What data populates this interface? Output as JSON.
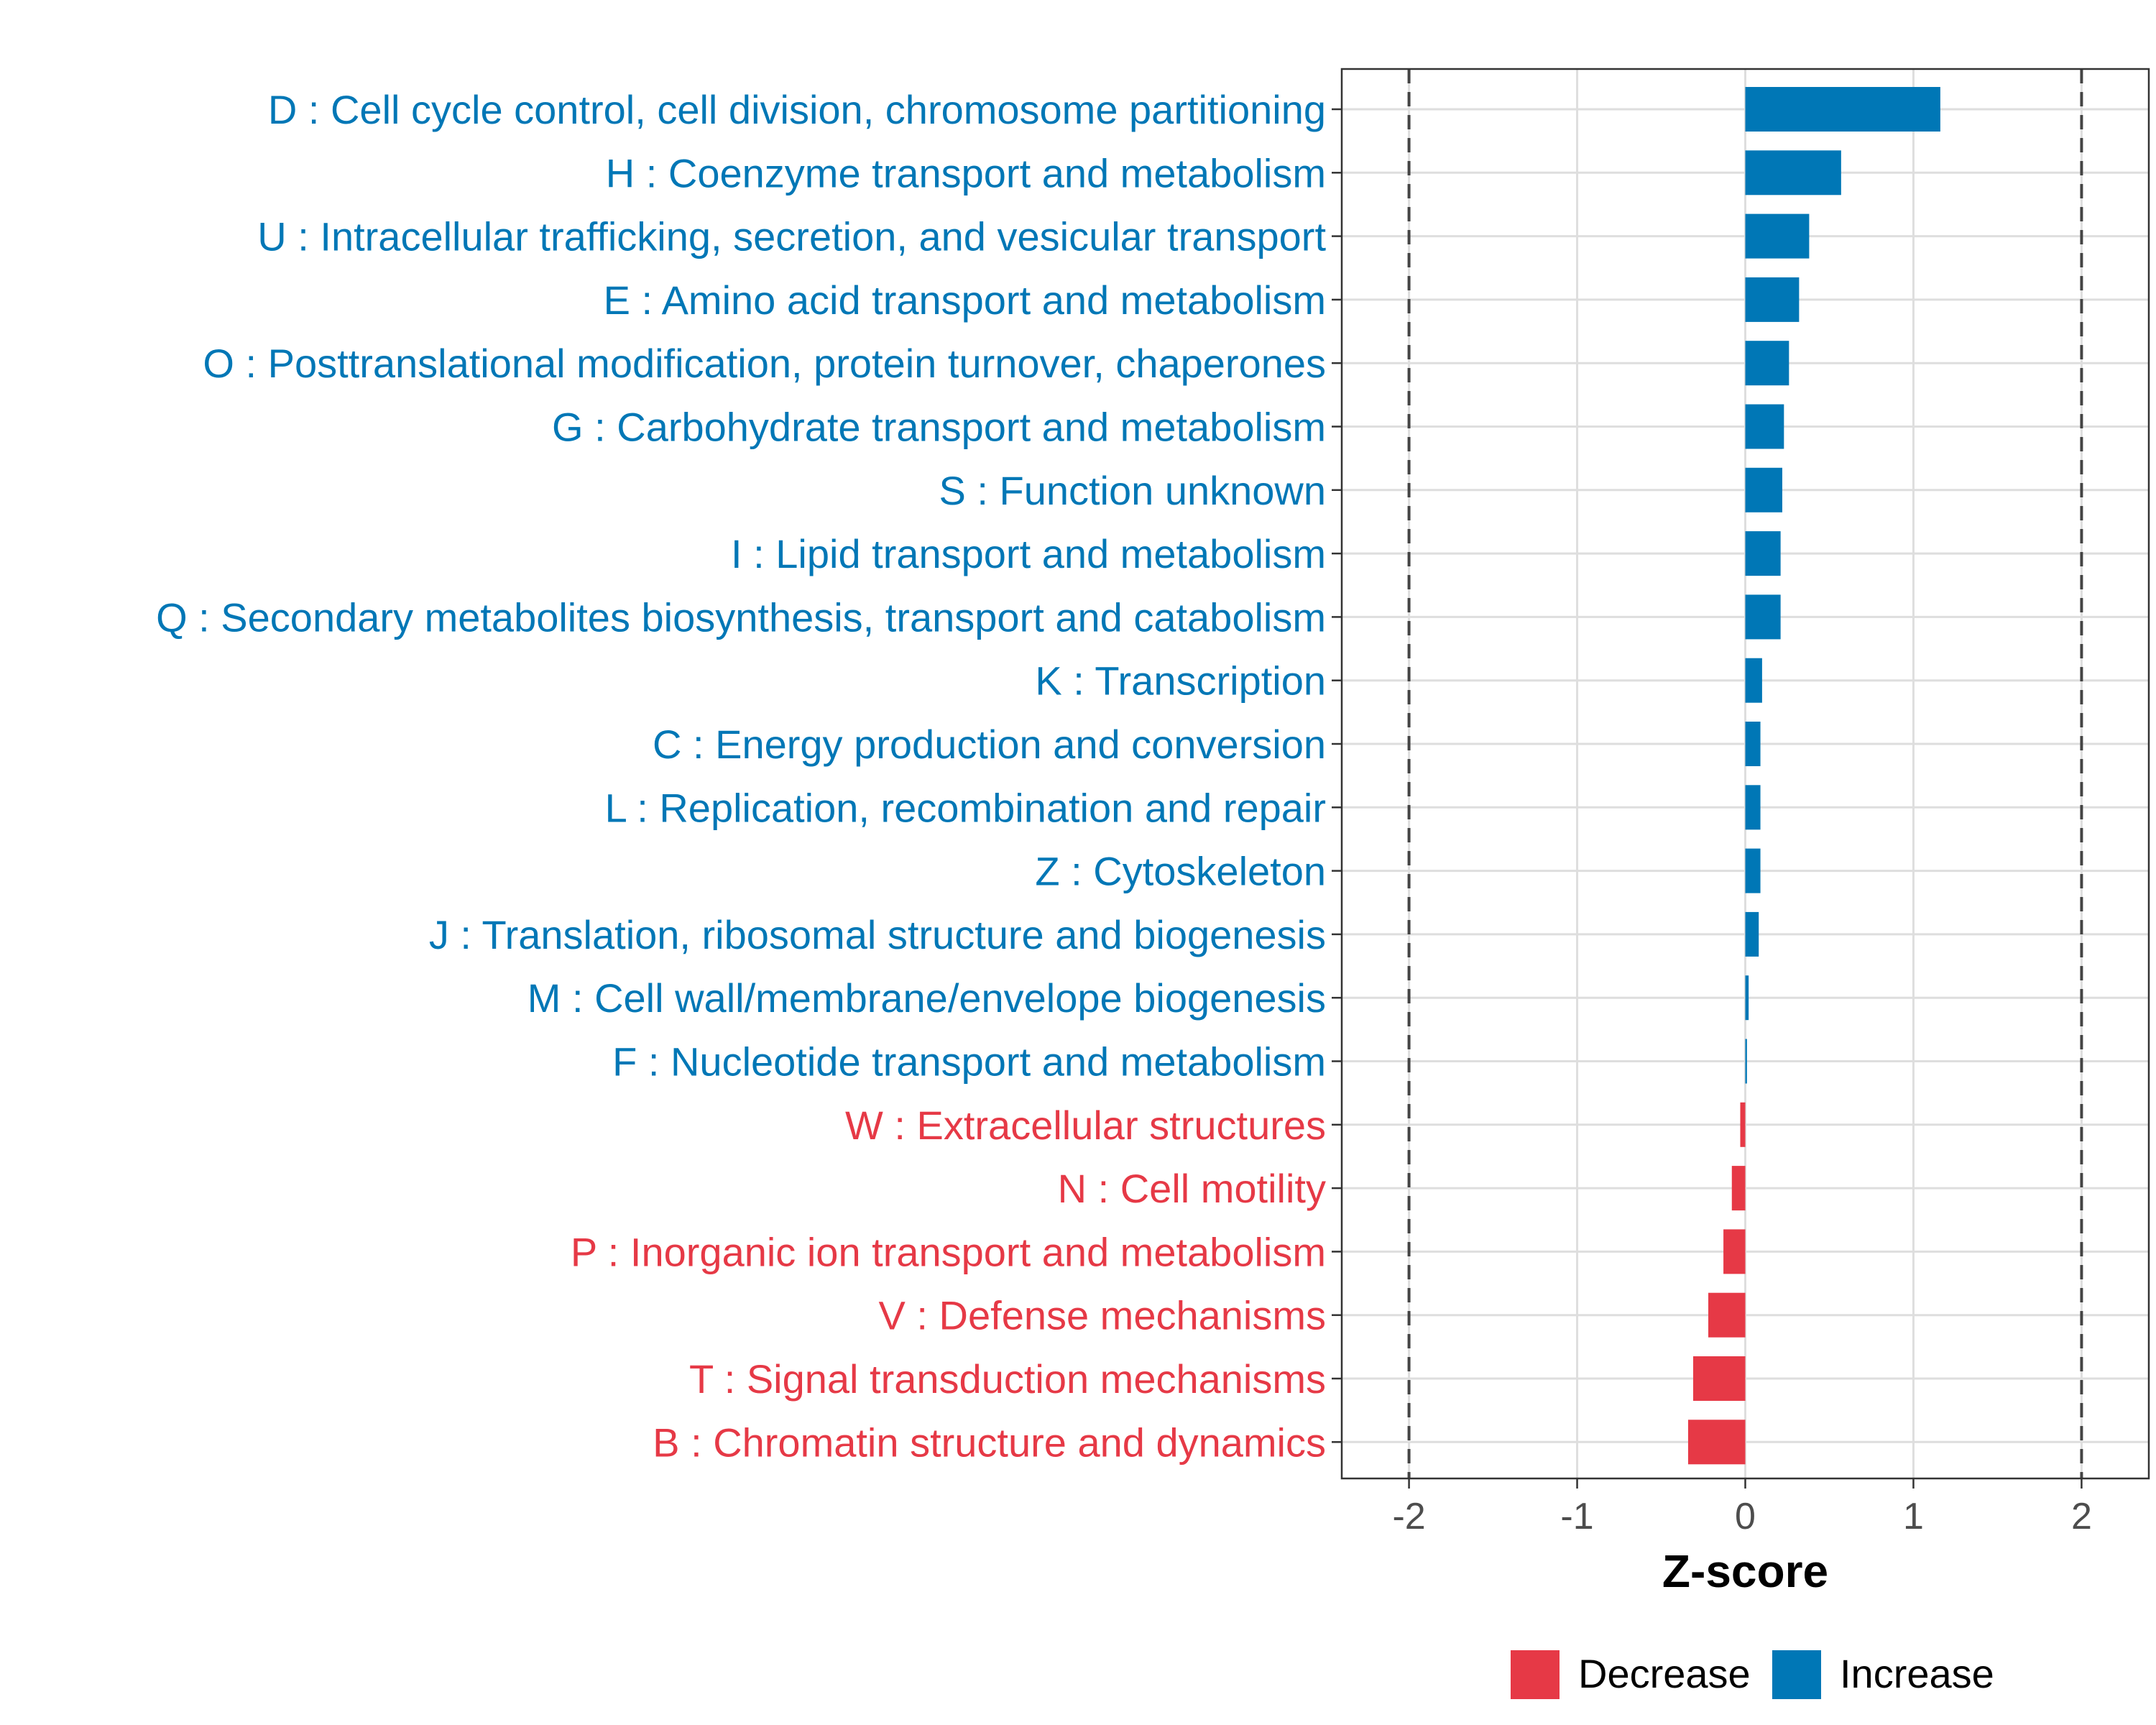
{
  "chart_data": {
    "type": "bar",
    "orientation": "horizontal",
    "xlabel": "Z-score",
    "ylabel": "",
    "xlim": [
      -2.4,
      2.4
    ],
    "x_ticks": [
      -2,
      -1,
      0,
      1,
      2
    ],
    "x_tick_labels": [
      "-2",
      "-1",
      "0",
      "1",
      "2"
    ],
    "reference_lines": [
      -2,
      2
    ],
    "grid": true,
    "colors": {
      "Decrease": "#e63946",
      "Increase": "#0077b6"
    },
    "legend": {
      "position": "bottom",
      "entries": [
        "Decrease",
        "Increase"
      ]
    },
    "categories": [
      {
        "label": "D : Cell cycle control, cell division, chromosome partitioning",
        "value": 1.16,
        "direction": "Increase"
      },
      {
        "label": "H : Coenzyme transport and metabolism",
        "value": 0.57,
        "direction": "Increase"
      },
      {
        "label": "U : Intracellular trafficking, secretion, and vesicular transport",
        "value": 0.38,
        "direction": "Increase"
      },
      {
        "label": "E : Amino acid transport and metabolism",
        "value": 0.32,
        "direction": "Increase"
      },
      {
        "label": "O : Posttranslational modification, protein turnover, chaperones",
        "value": 0.26,
        "direction": "Increase"
      },
      {
        "label": "G : Carbohydrate transport and metabolism",
        "value": 0.23,
        "direction": "Increase"
      },
      {
        "label": "S : Function unknown",
        "value": 0.22,
        "direction": "Increase"
      },
      {
        "label": "I : Lipid transport and metabolism",
        "value": 0.21,
        "direction": "Increase"
      },
      {
        "label": "Q : Secondary metabolites biosynthesis, transport and catabolism",
        "value": 0.21,
        "direction": "Increase"
      },
      {
        "label": "K : Transcription",
        "value": 0.1,
        "direction": "Increase"
      },
      {
        "label": "C : Energy production and conversion",
        "value": 0.09,
        "direction": "Increase"
      },
      {
        "label": "L : Replication, recombination and repair",
        "value": 0.09,
        "direction": "Increase"
      },
      {
        "label": "Z : Cytoskeleton",
        "value": 0.09,
        "direction": "Increase"
      },
      {
        "label": "J : Translation, ribosomal structure and biogenesis",
        "value": 0.08,
        "direction": "Increase"
      },
      {
        "label": "M : Cell wall/membrane/envelope biogenesis",
        "value": 0.02,
        "direction": "Increase"
      },
      {
        "label": "F : Nucleotide transport and metabolism",
        "value": 0.01,
        "direction": "Increase"
      },
      {
        "label": "W : Extracellular structures",
        "value": -0.03,
        "direction": "Decrease"
      },
      {
        "label": "N : Cell motility",
        "value": -0.08,
        "direction": "Decrease"
      },
      {
        "label": "P : Inorganic ion transport and metabolism",
        "value": -0.13,
        "direction": "Decrease"
      },
      {
        "label": "V : Defense mechanisms",
        "value": -0.22,
        "direction": "Decrease"
      },
      {
        "label": "T : Signal transduction mechanisms",
        "value": -0.31,
        "direction": "Decrease"
      },
      {
        "label": "B : Chromatin structure and dynamics",
        "value": -0.34,
        "direction": "Decrease"
      }
    ]
  }
}
